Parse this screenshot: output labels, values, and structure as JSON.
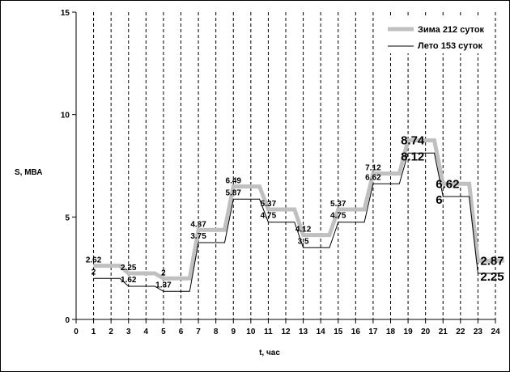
{
  "chart_data": {
    "type": "line",
    "xlabel": "t, час",
    "ylabel": "S, МВА",
    "xlim": [
      0,
      24
    ],
    "ylim": [
      0,
      15
    ],
    "xticks": [
      0,
      1,
      2,
      3,
      4,
      5,
      6,
      7,
      8,
      9,
      10,
      11,
      12,
      13,
      14,
      15,
      16,
      17,
      18,
      19,
      20,
      21,
      22,
      23,
      24
    ],
    "yticks": [
      0,
      5,
      10,
      15
    ],
    "legend_position": "top-right",
    "step_profile": true,
    "series": [
      {
        "name": "Зима 212 суток",
        "color": "#c0c0c0",
        "values": [
          2.62,
          2.62,
          2.25,
          2.25,
          2,
          2,
          4.37,
          4.37,
          6.49,
          6.49,
          5.37,
          5.37,
          4.12,
          4.12,
          5.37,
          5.37,
          7.12,
          7.12,
          8.74,
          8.74,
          6.62,
          6.62,
          2.87,
          2.87
        ]
      },
      {
        "name": "Лето 153 суток",
        "color": "#000000",
        "values": [
          2,
          2,
          1.62,
          1.62,
          1.37,
          1.37,
          3.75,
          3.75,
          5.87,
          5.87,
          4.75,
          4.75,
          3.5,
          3.5,
          4.75,
          4.75,
          6.62,
          6.62,
          8.12,
          8.12,
          6,
          6,
          2.25,
          2.25
        ]
      }
    ],
    "annotations": [
      {
        "hour": 1,
        "winter": "2.62",
        "summer": "2",
        "big": false
      },
      {
        "hour": 3,
        "winter": "2.25",
        "summer": "1.62",
        "big": false
      },
      {
        "hour": 5,
        "winter": "2",
        "summer": "1.37",
        "big": false
      },
      {
        "hour": 7,
        "winter": "4.37",
        "summer": "3.75",
        "big": false
      },
      {
        "hour": 9,
        "winter": "6.49",
        "summer": "5.87",
        "big": false
      },
      {
        "hour": 11,
        "winter": "5.37",
        "summer": "4.75",
        "big": false
      },
      {
        "hour": 13,
        "winter": "4.12",
        "summer": "3.5",
        "big": false
      },
      {
        "hour": 15,
        "winter": "5.37",
        "summer": "4.75",
        "big": false
      },
      {
        "hour": 17,
        "winter": "7.12",
        "summer": "6.62",
        "big": false
      },
      {
        "hour": 19,
        "winter": "8.74",
        "summer": "8.12",
        "big": true
      },
      {
        "hour": 21,
        "winter": "6.62",
        "summer": "6",
        "big": true
      },
      {
        "hour": 23,
        "winter": "2.87",
        "summer": "2.25",
        "big": true
      }
    ]
  }
}
